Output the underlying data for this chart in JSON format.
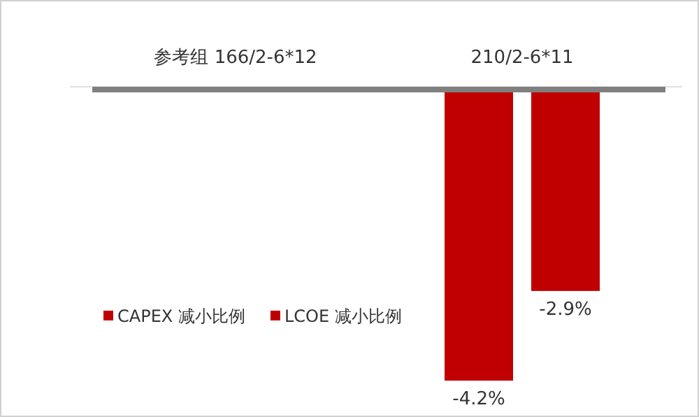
{
  "chart_data": {
    "type": "bar",
    "categories": [
      "参考组  166/2-6*12",
      "210/2-6*11"
    ],
    "series": [
      {
        "name": "CAPEX 减小比例",
        "color": "#c00000",
        "values": [
          0,
          -4.2
        ],
        "value_labels": [
          null,
          "-4.2%"
        ]
      },
      {
        "name": "LCOE 减小比例",
        "color": "#c00000",
        "values": [
          0,
          -2.9
        ],
        "value_labels": [
          null,
          "-2.9%"
        ]
      }
    ],
    "legend": "bottom left",
    "grid": false
  }
}
